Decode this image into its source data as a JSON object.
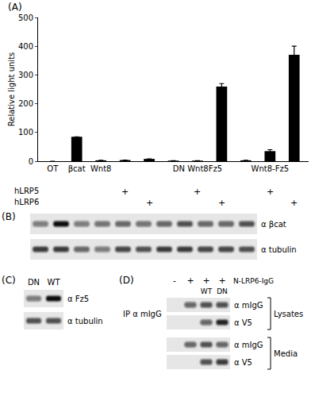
{
  "chart_data": {
    "type": "bar",
    "panel_label": "(A)",
    "y_label": "Relative light units",
    "categories": [
      "OT",
      "βcat",
      "Wnt8",
      null,
      null,
      null,
      "DN Wnt8Fz5",
      null,
      null,
      "Wnt8-Fz5",
      null
    ],
    "values": [
      0,
      85,
      3,
      4,
      8,
      2,
      2,
      260,
      3,
      35,
      370
    ],
    "errors": [
      null,
      null,
      null,
      null,
      null,
      null,
      null,
      10,
      null,
      5,
      30
    ],
    "color": "#000000",
    "ylim": [
      0,
      500
    ],
    "yticks": [
      0,
      100,
      200,
      300,
      400,
      500
    ],
    "treatment_rows": [
      {
        "label": "hLRP5",
        "marks": [
          null,
          null,
          null,
          "+",
          null,
          null,
          "+",
          null,
          null,
          "+",
          null
        ]
      },
      {
        "label": "hLRP6",
        "marks": [
          null,
          null,
          null,
          null,
          "+",
          null,
          null,
          "+",
          null,
          null,
          "+"
        ]
      }
    ]
  },
  "blots": [
    {
      "panel_label": "(B)",
      "rows": [
        {
          "label": "α βcat",
          "intensity": [
            0.5,
            1.0,
            0.5,
            0.55,
            0.6,
            0.55,
            0.6,
            0.7,
            0.6,
            0.6,
            0.7
          ]
        },
        {
          "label": "α tubulin",
          "intensity": [
            0.8,
            0.8,
            0.6,
            0.5,
            0.75,
            0.7,
            0.8,
            0.8,
            0.75,
            0.75,
            0.7
          ]
        }
      ]
    },
    {
      "panel_label": "(C)",
      "lane_labels": [
        "DN",
        "WT"
      ],
      "rows": [
        {
          "label": "α Fz5",
          "intensity": [
            0.5,
            1.0
          ]
        },
        {
          "label": "α tubulin",
          "intensity": [
            0.7,
            0.7
          ]
        }
      ]
    },
    {
      "panel_label": "(D)",
      "header_label": "N-LRP6-IgG",
      "header_marks": [
        "-",
        "+",
        "+",
        "+"
      ],
      "lane_labels": [
        null,
        null,
        "WT",
        "DN"
      ],
      "side_label": "IP α mIgG",
      "groups": [
        {
          "label": "Lysates",
          "rows": [
            {
              "label": "α mIgG",
              "intensity": [
                0,
                0.6,
                0.7,
                0.7
              ]
            },
            {
              "label": "α V5",
              "intensity": [
                0,
                0,
                0.6,
                0.9
              ]
            }
          ]
        },
        {
          "label": "Media",
          "rows": [
            {
              "label": "α mIgG",
              "intensity": [
                0,
                0.6,
                0.7,
                0.6
              ]
            },
            {
              "label": "α V5",
              "intensity": [
                0,
                0,
                0.7,
                0.8
              ]
            }
          ]
        }
      ]
    }
  ]
}
